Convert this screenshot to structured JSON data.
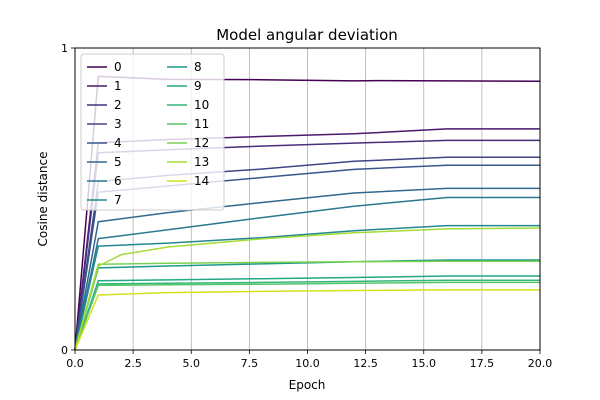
{
  "chart_data": {
    "type": "line",
    "title": "Model angular deviation",
    "xlabel": "Epoch",
    "ylabel": "Cosine distance",
    "xlim": [
      0,
      20
    ],
    "ylim": [
      0,
      1
    ],
    "xticks": [
      0.0,
      2.5,
      5.0,
      7.5,
      10.0,
      12.5,
      15.0,
      17.5,
      20.0
    ],
    "xtick_labels": [
      "0.0",
      "2.5",
      "5.0",
      "7.5",
      "10.0",
      "12.5",
      "15.0",
      "17.5",
      "20.0"
    ],
    "yticks": [
      0,
      1
    ],
    "ytick_labels": [
      "0",
      "1"
    ],
    "grid": "vertical",
    "legend": {
      "placement": "top-left",
      "columns": 2
    },
    "colormap": "viridis",
    "series": [
      {
        "name": "0",
        "color": "#440154",
        "x": [
          0,
          1,
          4,
          8,
          12,
          13,
          16,
          20
        ],
        "y": [
          0.0,
          0.906,
          0.896,
          0.895,
          0.891,
          0.892,
          0.891,
          0.89
        ]
      },
      {
        "name": "1",
        "color": "#481a6c",
        "x": [
          0,
          1,
          4,
          8,
          12,
          16,
          20
        ],
        "y": [
          0.0,
          0.686,
          0.697,
          0.707,
          0.716,
          0.732,
          0.732
        ]
      },
      {
        "name": "2",
        "color": "#472f7d",
        "x": [
          0,
          1,
          4,
          8,
          12,
          16,
          20
        ],
        "y": [
          0.0,
          0.653,
          0.663,
          0.675,
          0.685,
          0.694,
          0.694
        ]
      },
      {
        "name": "3",
        "color": "#414487",
        "x": [
          0,
          1,
          4,
          8,
          12,
          16,
          20
        ],
        "y": [
          0.0,
          0.558,
          0.578,
          0.599,
          0.625,
          0.638,
          0.638
        ]
      },
      {
        "name": "4",
        "color": "#39568c",
        "x": [
          0,
          1,
          4,
          8,
          12,
          16,
          20
        ],
        "y": [
          0.0,
          0.523,
          0.543,
          0.571,
          0.598,
          0.612,
          0.612
        ]
      },
      {
        "name": "5",
        "color": "#31688e",
        "x": [
          0,
          1,
          4,
          8,
          12,
          16,
          20
        ],
        "y": [
          0.0,
          0.425,
          0.455,
          0.488,
          0.52,
          0.535,
          0.535
        ]
      },
      {
        "name": "6",
        "color": "#2a788e",
        "x": [
          0,
          1,
          4,
          8,
          12,
          16,
          20
        ],
        "y": [
          0.0,
          0.369,
          0.398,
          0.438,
          0.476,
          0.505,
          0.505
        ]
      },
      {
        "name": "7",
        "color": "#23888e",
        "x": [
          0,
          1,
          4,
          8,
          12,
          16,
          20
        ],
        "y": [
          0.0,
          0.344,
          0.354,
          0.372,
          0.395,
          0.412,
          0.412
        ]
      },
      {
        "name": "8",
        "color": "#1f988b",
        "x": [
          0,
          1,
          4,
          8,
          12,
          16,
          20
        ],
        "y": [
          0.0,
          0.272,
          0.278,
          0.285,
          0.292,
          0.298,
          0.298
        ]
      },
      {
        "name": "9",
        "color": "#22a884",
        "x": [
          0,
          1,
          4,
          8,
          12,
          16,
          20
        ],
        "y": [
          0.0,
          0.229,
          0.232,
          0.236,
          0.24,
          0.245,
          0.245
        ]
      },
      {
        "name": "10",
        "color": "#35b779",
        "x": [
          0,
          1,
          4,
          8,
          12,
          16,
          20
        ],
        "y": [
          0.0,
          0.219,
          0.221,
          0.224,
          0.227,
          0.231,
          0.231
        ]
      },
      {
        "name": "11",
        "color": "#54c568",
        "x": [
          0,
          1,
          4,
          8,
          12,
          16,
          20
        ],
        "y": [
          0.0,
          0.214,
          0.216,
          0.218,
          0.221,
          0.224,
          0.224
        ]
      },
      {
        "name": "12",
        "color": "#7ad151",
        "x": [
          0,
          1,
          4,
          8,
          12,
          16,
          20
        ],
        "y": [
          0.0,
          0.284,
          0.287,
          0.29,
          0.292,
          0.294,
          0.294
        ]
      },
      {
        "name": "13",
        "color": "#a5db36",
        "x": [
          0,
          1,
          2,
          4,
          8,
          12,
          16,
          20
        ],
        "y": [
          0.0,
          0.278,
          0.316,
          0.341,
          0.368,
          0.388,
          0.401,
          0.404
        ]
      },
      {
        "name": "14",
        "color": "#d2e21b",
        "x": [
          0,
          1,
          4,
          8,
          12,
          16,
          20
        ],
        "y": [
          0.0,
          0.182,
          0.19,
          0.194,
          0.197,
          0.199,
          0.199
        ]
      }
    ]
  }
}
